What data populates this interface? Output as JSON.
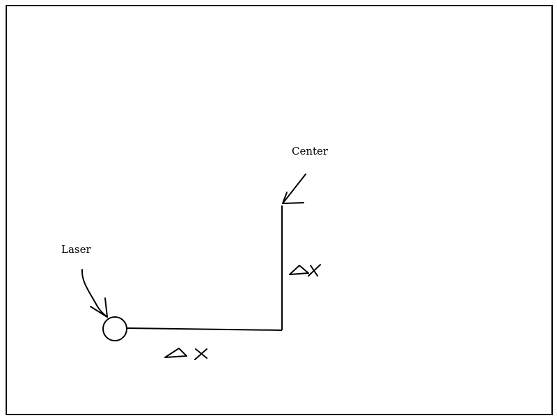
{
  "labels": {
    "laser": "Laser",
    "center": "Center"
  },
  "annotations": {
    "horizontal_delta": "Δx",
    "vertical_delta": "Δx"
  },
  "colors": {
    "stroke": "#000000",
    "background": "#ffffff"
  },
  "icons": {
    "laser": "circle",
    "arrows": "hand-drawn-arrow"
  }
}
